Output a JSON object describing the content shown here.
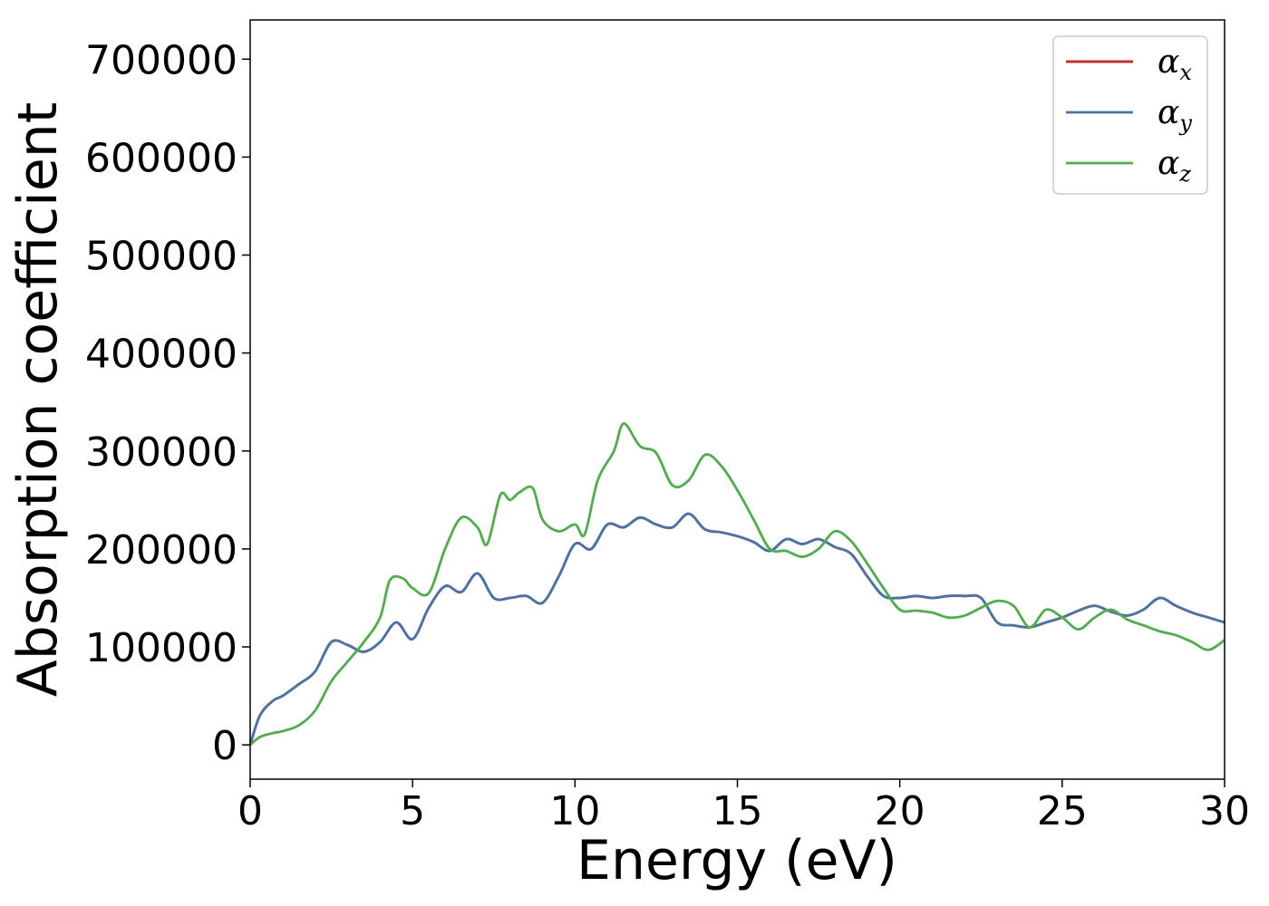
{
  "chart_data": {
    "type": "line",
    "title": "",
    "xlabel": "Energy (eV)",
    "ylabel": "Absorption coefficient",
    "xlim": [
      0,
      30
    ],
    "ylim": [
      -35000,
      740000
    ],
    "xticks": [
      0,
      5,
      10,
      15,
      20,
      25,
      30
    ],
    "yticks": [
      0,
      100000,
      200000,
      300000,
      400000,
      500000,
      600000,
      700000
    ],
    "grid": false,
    "legend_position": "top-right",
    "series": [
      {
        "name": "α_x",
        "label_main": "α",
        "label_sub": "x",
        "color": "#e41a1c",
        "x": [
          0,
          0.3,
          0.7,
          1.0,
          1.5,
          2.0,
          2.5,
          3.0,
          3.5,
          4.0,
          4.5,
          5.0,
          5.5,
          6.0,
          6.5,
          7.0,
          7.5,
          8.0,
          8.5,
          9.0,
          9.5,
          10.0,
          10.5,
          11.0,
          11.5,
          12.0,
          12.5,
          13.0,
          13.5,
          14.0,
          14.5,
          15.0,
          15.5,
          16.0,
          16.5,
          17.0,
          17.5,
          18.0,
          18.5,
          19.0,
          19.5,
          20.0,
          20.5,
          21.0,
          21.5,
          22.0,
          22.5,
          23.0,
          23.5,
          24.0,
          24.5,
          25.0,
          25.5,
          26.0,
          26.5,
          27.0,
          27.5,
          28.0,
          28.5,
          29.0,
          29.5,
          30.0
        ],
        "y": [
          0,
          30000,
          45000,
          50000,
          62000,
          75000,
          105000,
          102000,
          95000,
          105000,
          125000,
          108000,
          140000,
          162000,
          156000,
          175000,
          150000,
          150000,
          152000,
          145000,
          172000,
          205000,
          200000,
          225000,
          222000,
          232000,
          225000,
          222000,
          236000,
          220000,
          217000,
          213000,
          207000,
          198000,
          210000,
          205000,
          210000,
          202000,
          195000,
          172000,
          152000,
          150000,
          152000,
          150000,
          152000,
          152000,
          150000,
          125000,
          122000,
          120000,
          125000,
          130000,
          137000,
          142000,
          136000,
          132000,
          138000,
          150000,
          142000,
          135000,
          130000,
          125000
        ]
      },
      {
        "name": "α_y",
        "label_main": "α",
        "label_sub": "y",
        "color": "#4575ab",
        "x": [
          0,
          0.3,
          0.7,
          1.0,
          1.5,
          2.0,
          2.5,
          3.0,
          3.5,
          4.0,
          4.5,
          5.0,
          5.5,
          6.0,
          6.5,
          7.0,
          7.5,
          8.0,
          8.5,
          9.0,
          9.5,
          10.0,
          10.5,
          11.0,
          11.5,
          12.0,
          12.5,
          13.0,
          13.5,
          14.0,
          14.5,
          15.0,
          15.5,
          16.0,
          16.5,
          17.0,
          17.5,
          18.0,
          18.5,
          19.0,
          19.5,
          20.0,
          20.5,
          21.0,
          21.5,
          22.0,
          22.5,
          23.0,
          23.5,
          24.0,
          24.5,
          25.0,
          25.5,
          26.0,
          26.5,
          27.0,
          27.5,
          28.0,
          28.5,
          29.0,
          29.5,
          30.0
        ],
        "y": [
          0,
          30000,
          45000,
          50000,
          62000,
          75000,
          105000,
          102000,
          95000,
          105000,
          125000,
          108000,
          140000,
          162000,
          156000,
          175000,
          150000,
          150000,
          152000,
          145000,
          172000,
          205000,
          200000,
          225000,
          222000,
          232000,
          225000,
          222000,
          236000,
          220000,
          217000,
          213000,
          207000,
          198000,
          210000,
          205000,
          210000,
          202000,
          195000,
          172000,
          152000,
          150000,
          152000,
          150000,
          152000,
          152000,
          150000,
          125000,
          122000,
          120000,
          125000,
          130000,
          137000,
          142000,
          136000,
          132000,
          138000,
          150000,
          142000,
          135000,
          130000,
          125000
        ]
      },
      {
        "name": "α_z",
        "label_main": "α",
        "label_sub": "z",
        "color": "#4daf4a",
        "x": [
          0,
          0.3,
          0.7,
          1.0,
          1.5,
          2.0,
          2.5,
          3.0,
          3.5,
          4.0,
          4.3,
          4.7,
          5.0,
          5.5,
          6.0,
          6.5,
          7.0,
          7.3,
          7.7,
          8.0,
          8.3,
          8.7,
          9.0,
          9.5,
          10.0,
          10.3,
          10.7,
          11.2,
          11.5,
          12.0,
          12.5,
          13.0,
          13.5,
          14.0,
          14.5,
          15.0,
          15.5,
          16.0,
          16.5,
          17.0,
          17.5,
          18.0,
          18.5,
          19.0,
          19.5,
          20.0,
          20.5,
          21.0,
          21.5,
          22.0,
          22.5,
          23.0,
          23.5,
          24.0,
          24.5,
          25.0,
          25.5,
          26.0,
          26.5,
          27.0,
          27.5,
          28.0,
          28.5,
          29.0,
          29.5,
          30.0
        ],
        "y": [
          0,
          8000,
          12000,
          14000,
          20000,
          35000,
          65000,
          85000,
          105000,
          130000,
          168000,
          170000,
          160000,
          155000,
          200000,
          232000,
          222000,
          205000,
          255000,
          250000,
          258000,
          262000,
          230000,
          218000,
          225000,
          215000,
          270000,
          300000,
          328000,
          305000,
          298000,
          265000,
          270000,
          296000,
          285000,
          260000,
          230000,
          200000,
          198000,
          192000,
          200000,
          218000,
          208000,
          185000,
          160000,
          138000,
          137000,
          135000,
          130000,
          132000,
          140000,
          147000,
          142000,
          120000,
          138000,
          130000,
          118000,
          130000,
          138000,
          128000,
          122000,
          116000,
          112000,
          105000,
          97000,
          107000
        ]
      }
    ]
  }
}
